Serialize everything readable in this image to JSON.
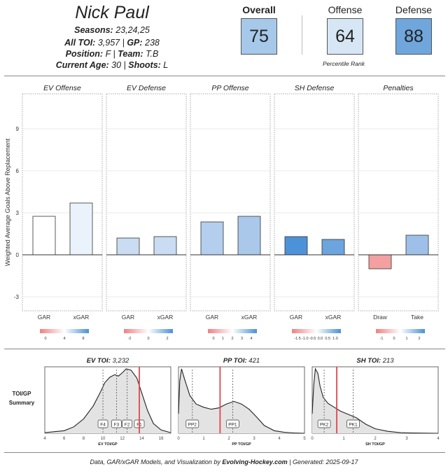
{
  "player": {
    "name": "Nick Paul",
    "seasons_label": "Seasons",
    "seasons_value": "23,24,25",
    "toi_label": "All TOI",
    "toi_value": "3,957",
    "gp_label": "GP",
    "gp_value": "238",
    "position_label": "Position",
    "position_value": "F",
    "team_label": "Team",
    "team_value": "T.B",
    "age_label": "Current Age",
    "age_value": "30",
    "shoots_label": "Shoots",
    "shoots_value": "L"
  },
  "ranks": {
    "overall_label": "Overall",
    "overall_value": "75",
    "overall_color": "#a6c8e9",
    "offense_label": "Offense",
    "offense_value": "64",
    "offense_color": "#d6e6f5",
    "defense_label": "Defense",
    "defense_value": "88",
    "defense_color": "#6fa6dc",
    "caption": "Percentile Rank"
  },
  "chart_data": [
    {
      "type": "bar",
      "ylabel": "Weighted Average Goals Above Replacement",
      "ylim": [
        -4,
        11.5
      ],
      "yticks": [
        -3,
        0,
        3,
        6,
        9
      ],
      "panels": [
        {
          "title": "EV Offense",
          "categories": [
            "GAR",
            "xGAR"
          ],
          "values": [
            2.75,
            3.7
          ],
          "colors": [
            "#ffffff",
            "#eaf2fb"
          ],
          "legend": {
            "ticks": [
              "0",
              "4",
              "8"
            ],
            "colors": [
              "#f08080",
              "#ffffff",
              "#4a90d9"
            ]
          }
        },
        {
          "title": "EV Defense",
          "categories": [
            "GAR",
            "xGAR"
          ],
          "values": [
            1.2,
            1.3
          ],
          "colors": [
            "#c9dcf1",
            "#c9dcf1"
          ],
          "legend": {
            "ticks": [
              "-2",
              "0",
              "2"
            ],
            "colors": [
              "#f08080",
              "#ffffff",
              "#4a90d9"
            ]
          }
        },
        {
          "title": "PP Offense",
          "categories": [
            "GAR",
            "xGAR"
          ],
          "values": [
            2.35,
            2.75
          ],
          "colors": [
            "#b4cfed",
            "#a9c8ea"
          ],
          "legend": {
            "ticks": [
              "0",
              "1",
              "2",
              "3",
              "4"
            ],
            "colors": [
              "#f08080",
              "#ffffff",
              "#4a90d9"
            ]
          }
        },
        {
          "title": "SH Defense",
          "categories": [
            "GAR",
            "xGAR"
          ],
          "values": [
            1.3,
            1.1
          ],
          "colors": [
            "#4d92d8",
            "#6ca4de"
          ],
          "legend": {
            "ticks": [
              "-1.5",
              "-1.0",
              "-0.5",
              "0.0",
              "0.5",
              "1.0"
            ],
            "colors": [
              "#f08080",
              "#ffffff",
              "#4a90d9"
            ]
          }
        },
        {
          "title": "Penalties",
          "categories": [
            "Draw",
            "Take"
          ],
          "values": [
            -1.0,
            1.4
          ],
          "colors": [
            "#f4a0a0",
            "#9ec0e8"
          ],
          "legend": {
            "ticks": [
              "-1",
              "0",
              "1",
              "2"
            ],
            "colors": [
              "#f08080",
              "#ffffff",
              "#4a90d9"
            ]
          }
        }
      ]
    },
    {
      "type": "area",
      "summary_label": "TOI/GP Summary",
      "panels": [
        {
          "title_label": "EV TOI",
          "title_value": "3,232",
          "xlabel": "EV TOI/GP",
          "xlim": [
            4,
            17
          ],
          "xticks": [
            "4",
            "6",
            "8",
            "10",
            "12",
            "14",
            "16"
          ],
          "xtick_values": [
            4,
            6,
            8,
            10,
            12,
            14,
            16
          ],
          "density_x": [
            4,
            6,
            7,
            8,
            9,
            9.7,
            10.2,
            10.7,
            11.2,
            11.6,
            12,
            12.4,
            12.9,
            13.5,
            14,
            14.6,
            15.2,
            16,
            17
          ],
          "density_y": [
            0.01,
            0.04,
            0.1,
            0.22,
            0.42,
            0.62,
            0.78,
            0.86,
            0.9,
            0.88,
            0.93,
            0.99,
            0.97,
            0.85,
            0.62,
            0.35,
            0.15,
            0.05,
            0.01
          ],
          "player_value": 13.75,
          "markers": [
            {
              "label": "F4",
              "value": 10.0
            },
            {
              "label": "F3",
              "value": 11.4
            },
            {
              "label": "F2",
              "value": 12.5
            },
            {
              "label": "F1",
              "value": 13.75
            }
          ]
        },
        {
          "title_label": "PP TOI",
          "title_value": "421",
          "xlabel": "PP TOI/GP",
          "xlim": [
            0,
            5
          ],
          "xticks": [
            "0",
            "1",
            "2",
            "3",
            "4",
            "5"
          ],
          "xtick_values": [
            0,
            1,
            2,
            3,
            4,
            5
          ],
          "density_x": [
            0,
            0.05,
            0.12,
            0.25,
            0.45,
            0.7,
            1.0,
            1.3,
            1.6,
            1.9,
            2.2,
            2.5,
            2.8,
            3.1,
            3.4,
            3.8,
            4.2,
            4.6,
            5
          ],
          "density_y": [
            0.3,
            0.8,
            0.99,
            0.82,
            0.58,
            0.45,
            0.4,
            0.37,
            0.39,
            0.45,
            0.49,
            0.45,
            0.37,
            0.25,
            0.12,
            0.04,
            0.015,
            0.005,
            0
          ],
          "player_value": 1.65,
          "markers": [
            {
              "label": "PP2",
              "value": 0.55
            },
            {
              "label": "PP1",
              "value": 2.15
            }
          ]
        },
        {
          "title_label": "SH TOI",
          "title_value": "213",
          "xlabel": "SH TOI/GP",
          "xlim": [
            0,
            4
          ],
          "xticks": [
            "0",
            "1",
            "2",
            "3",
            "4"
          ],
          "xtick_values": [
            0,
            1,
            2,
            3,
            4
          ],
          "density_x": [
            0,
            0.05,
            0.1,
            0.18,
            0.25,
            0.35,
            0.5,
            0.7,
            0.9,
            1.1,
            1.4,
            1.7,
            2.0,
            2.4,
            2.8,
            3.2,
            4
          ],
          "density_y": [
            0.3,
            0.75,
            0.99,
            0.92,
            0.72,
            0.55,
            0.46,
            0.4,
            0.34,
            0.3,
            0.24,
            0.14,
            0.07,
            0.03,
            0.01,
            0.005,
            0
          ],
          "player_value": 0.78,
          "markers": [
            {
              "label": "PK2",
              "value": 0.38
            },
            {
              "label": "PK1",
              "value": 1.3
            }
          ]
        }
      ]
    }
  ],
  "footer": {
    "pre": "Data, GAR/xGAR Models, and Visualization by",
    "brand": "Evolving-Hockey.com",
    "generated": "| Generated: 2025-09-17"
  }
}
